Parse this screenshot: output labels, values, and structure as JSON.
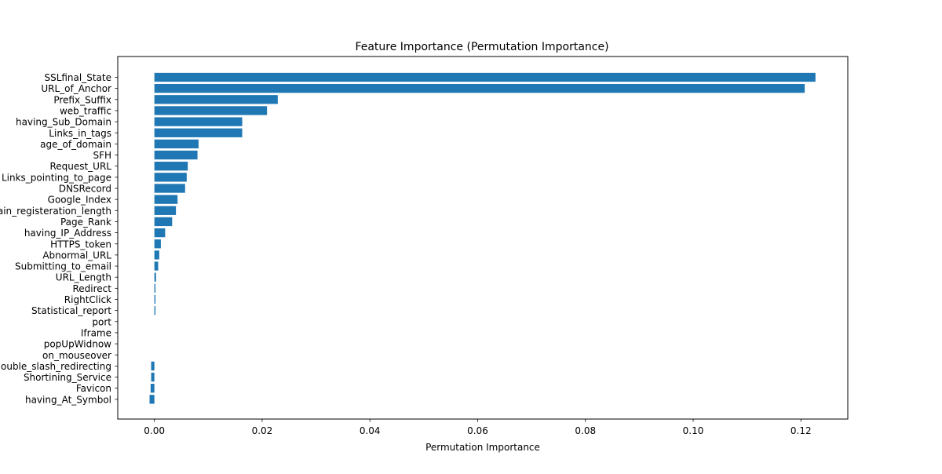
{
  "chart_data": {
    "type": "bar",
    "orientation": "horizontal",
    "title": "Feature Importance (Permutation Importance)",
    "xlabel": "Permutation Importance",
    "ylabel": "",
    "xlim": [
      -0.0068,
      0.1287
    ],
    "xticks": [
      "0.00",
      "0.02",
      "0.04",
      "0.06",
      "0.08",
      "0.10",
      "0.12"
    ],
    "xtick_values": [
      0,
      0.02,
      0.04,
      0.06,
      0.08,
      0.1,
      0.12
    ],
    "grid": false,
    "bar_color": "#1f77b4",
    "categories": [
      "SSLfinal_State",
      "URL_of_Anchor",
      "Prefix_Suffix",
      "web_traffic",
      "having_Sub_Domain",
      "Links_in_tags",
      "age_of_domain",
      "SFH",
      "Request_URL",
      "Links_pointing_to_page",
      "DNSRecord",
      "Google_Index",
      "Domain_registeration_length",
      "Page_Rank",
      "having_IP_Address",
      "HTTPS_token",
      "Abnormal_URL",
      "Submitting_to_email",
      "URL_Length",
      "Redirect",
      "RightClick",
      "Statistical_report",
      "port",
      "Iframe",
      "popUpWidnow",
      "on_mouseover",
      "double_slash_redirecting",
      "Shortining_Service",
      "Favicon",
      "having_At_Symbol"
    ],
    "values": [
      0.1227,
      0.1207,
      0.0229,
      0.0209,
      0.0163,
      0.0163,
      0.0082,
      0.008,
      0.0062,
      0.006,
      0.0057,
      0.0043,
      0.004,
      0.0033,
      0.002,
      0.0012,
      0.0009,
      0.0007,
      0.0003,
      0.0002,
      0.0002,
      0.0002,
      0.0,
      0.0,
      0.0,
      0.0,
      -0.0006,
      -0.0006,
      -0.0007,
      -0.0009
    ]
  }
}
